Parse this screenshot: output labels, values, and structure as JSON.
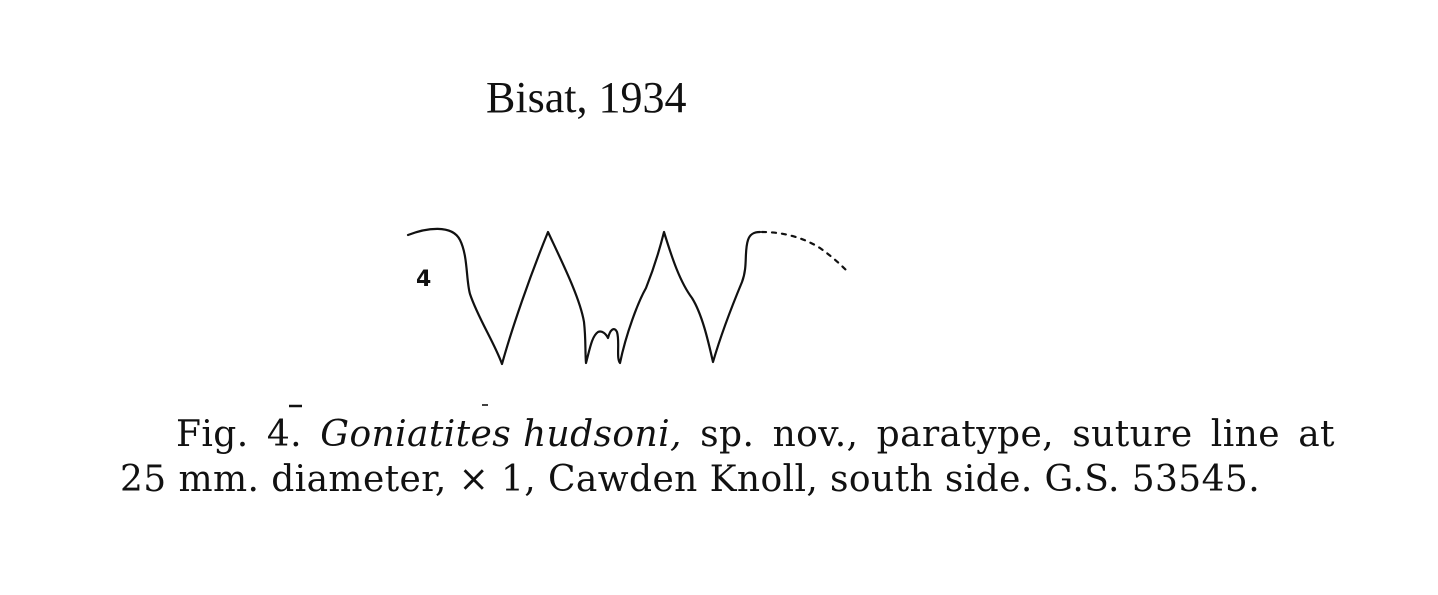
{
  "header_note": "Bisat, 1934",
  "figure": {
    "number_label": "4"
  },
  "caption": {
    "line1": {
      "fig_label": "Fig.",
      "fig_number": "4.",
      "species": "Goniatites hudsoni,",
      "w1": "sp.",
      "w2": "nov.,",
      "w3": "paratype,",
      "w4": "suture",
      "w5": "line",
      "w6": "at"
    },
    "line2": "25 mm. diameter, × 1, Cawden Knoll, south side.  G.S. 53545."
  }
}
